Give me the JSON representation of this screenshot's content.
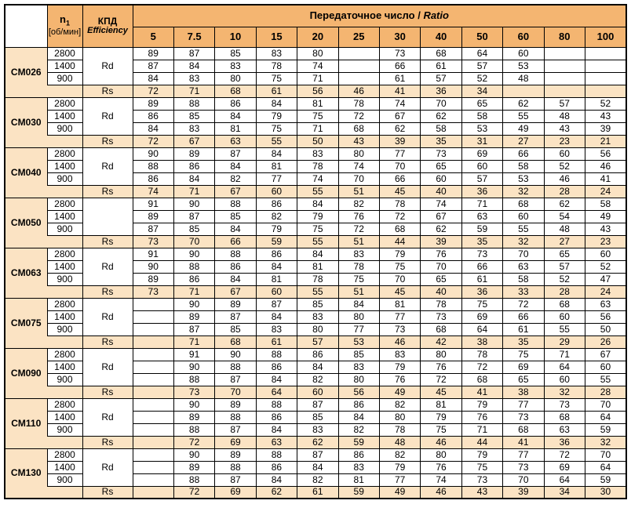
{
  "title": "Gearbox efficiency table",
  "colors": {
    "header_orange": "#F4B571",
    "row_peach": "#FBE3C3",
    "border": "#000000",
    "text": "#000000"
  },
  "header": {
    "n1_label": "n",
    "n1_sub": "1",
    "n1_unit": "[об/мин]",
    "efficiency_ru": "КПД",
    "efficiency_en": "Efficiency",
    "ratio_ru": "Передаточное число /",
    "ratio_en": "Ratio",
    "ratio_columns": [
      "5",
      "7.5",
      "10",
      "15",
      "20",
      "25",
      "30",
      "40",
      "50",
      "60",
      "80",
      "100"
    ]
  },
  "models": [
    {
      "name": "CM026",
      "rd_label": "Rd",
      "rs_label": "Rs",
      "rd_rows": [
        {
          "speed": "2800",
          "values": [
            "89",
            "87",
            "85",
            "83",
            "80",
            "",
            "73",
            "68",
            "64",
            "60",
            "",
            ""
          ]
        },
        {
          "speed": "1400",
          "values": [
            "87",
            "84",
            "83",
            "78",
            "74",
            "",
            "66",
            "61",
            "57",
            "53",
            "",
            ""
          ]
        },
        {
          "speed": "900",
          "values": [
            "84",
            "83",
            "80",
            "75",
            "71",
            "",
            "61",
            "57",
            "52",
            "48",
            "",
            ""
          ]
        }
      ],
      "rs_values": [
        "72",
        "71",
        "68",
        "61",
        "56",
        "46",
        "41",
        "36",
        "34",
        "",
        "",
        ""
      ]
    },
    {
      "name": "CM030",
      "rd_label": "Rd",
      "rs_label": "Rs",
      "rd_rows": [
        {
          "speed": "2800",
          "values": [
            "89",
            "88",
            "86",
            "84",
            "81",
            "78",
            "74",
            "70",
            "65",
            "62",
            "57",
            "52"
          ]
        },
        {
          "speed": "1400",
          "values": [
            "86",
            "85",
            "84",
            "79",
            "75",
            "72",
            "67",
            "62",
            "58",
            "55",
            "48",
            "43"
          ]
        },
        {
          "speed": "900",
          "values": [
            "84",
            "83",
            "81",
            "75",
            "71",
            "68",
            "62",
            "58",
            "53",
            "49",
            "43",
            "39"
          ]
        }
      ],
      "rs_values": [
        "72",
        "67",
        "63",
        "55",
        "50",
        "43",
        "39",
        "35",
        "31",
        "27",
        "23",
        "21"
      ]
    },
    {
      "name": "CM040",
      "rd_label": "Rd",
      "rs_label": "Rs",
      "rd_rows": [
        {
          "speed": "2800",
          "values": [
            "90",
            "89",
            "87",
            "84",
            "83",
            "80",
            "77",
            "73",
            "69",
            "66",
            "60",
            "56"
          ]
        },
        {
          "speed": "1400",
          "values": [
            "88",
            "86",
            "84",
            "81",
            "78",
            "74",
            "70",
            "65",
            "60",
            "58",
            "52",
            "46"
          ]
        },
        {
          "speed": "900",
          "values": [
            "86",
            "84",
            "82",
            "77",
            "74",
            "70",
            "66",
            "60",
            "57",
            "53",
            "46",
            "41"
          ]
        }
      ],
      "rs_values": [
        "74",
        "71",
        "67",
        "60",
        "55",
        "51",
        "45",
        "40",
        "36",
        "32",
        "28",
        "24"
      ]
    },
    {
      "name": "CM050",
      "rd_label": "",
      "rs_label": "Rs",
      "rd_rows": [
        {
          "speed": "2800",
          "values": [
            "91",
            "90",
            "88",
            "86",
            "84",
            "82",
            "78",
            "74",
            "71",
            "68",
            "62",
            "58"
          ]
        },
        {
          "speed": "1400",
          "values": [
            "89",
            "87",
            "85",
            "82",
            "79",
            "76",
            "72",
            "67",
            "63",
            "60",
            "54",
            "49"
          ]
        },
        {
          "speed": "900",
          "values": [
            "87",
            "85",
            "84",
            "79",
            "75",
            "72",
            "68",
            "62",
            "59",
            "55",
            "48",
            "43"
          ]
        }
      ],
      "rs_values": [
        "73",
        "70",
        "66",
        "59",
        "55",
        "51",
        "44",
        "39",
        "35",
        "32",
        "27",
        "23"
      ]
    },
    {
      "name": "CM063",
      "rd_label": "Rd",
      "rs_label": "Rs",
      "rd_rows": [
        {
          "speed": "2800",
          "values": [
            "91",
            "90",
            "88",
            "86",
            "84",
            "83",
            "79",
            "76",
            "73",
            "70",
            "65",
            "60"
          ]
        },
        {
          "speed": "1400",
          "values": [
            "90",
            "88",
            "86",
            "84",
            "81",
            "78",
            "75",
            "70",
            "66",
            "63",
            "57",
            "52"
          ]
        },
        {
          "speed": "900",
          "values": [
            "89",
            "86",
            "84",
            "81",
            "78",
            "75",
            "70",
            "65",
            "61",
            "58",
            "52",
            "47"
          ]
        }
      ],
      "rs_values": [
        "73",
        "71",
        "67",
        "60",
        "55",
        "51",
        "45",
        "40",
        "36",
        "33",
        "28",
        "24"
      ]
    },
    {
      "name": "CM075",
      "rd_label": "Rd",
      "rs_label": "Rs",
      "rd_rows": [
        {
          "speed": "2800",
          "values": [
            "",
            "90",
            "89",
            "87",
            "85",
            "84",
            "81",
            "78",
            "75",
            "72",
            "68",
            "63"
          ]
        },
        {
          "speed": "1400",
          "values": [
            "",
            "89",
            "87",
            "84",
            "83",
            "80",
            "77",
            "73",
            "69",
            "66",
            "60",
            "56"
          ]
        },
        {
          "speed": "900",
          "values": [
            "",
            "87",
            "85",
            "83",
            "80",
            "77",
            "73",
            "68",
            "64",
            "61",
            "55",
            "50"
          ]
        }
      ],
      "rs_values": [
        "",
        "71",
        "68",
        "61",
        "57",
        "53",
        "46",
        "42",
        "38",
        "35",
        "29",
        "26"
      ]
    },
    {
      "name": "CM090",
      "rd_label": "Rd",
      "rs_label": "Rs",
      "rd_rows": [
        {
          "speed": "2800",
          "values": [
            "",
            "91",
            "90",
            "88",
            "86",
            "85",
            "83",
            "80",
            "78",
            "75",
            "71",
            "67"
          ]
        },
        {
          "speed": "1400",
          "values": [
            "",
            "90",
            "88",
            "86",
            "84",
            "83",
            "79",
            "76",
            "72",
            "69",
            "64",
            "60"
          ]
        },
        {
          "speed": "900",
          "values": [
            "",
            "88",
            "87",
            "84",
            "82",
            "80",
            "76",
            "72",
            "68",
            "65",
            "60",
            "55"
          ]
        }
      ],
      "rs_values": [
        "",
        "73",
        "70",
        "64",
        "60",
        "56",
        "49",
        "45",
        "41",
        "38",
        "32",
        "28"
      ]
    },
    {
      "name": "CM110",
      "rd_label": "Rd",
      "rs_label": "Rs",
      "rd_rows": [
        {
          "speed": "2800",
          "values": [
            "",
            "90",
            "89",
            "88",
            "87",
            "86",
            "82",
            "81",
            "79",
            "77",
            "73",
            "70"
          ]
        },
        {
          "speed": "1400",
          "values": [
            "",
            "89",
            "88",
            "86",
            "85",
            "84",
            "80",
            "79",
            "76",
            "73",
            "68",
            "64"
          ]
        },
        {
          "speed": "900",
          "values": [
            "",
            "88",
            "87",
            "84",
            "83",
            "82",
            "78",
            "75",
            "71",
            "68",
            "63",
            "59"
          ]
        }
      ],
      "rs_values": [
        "",
        "72",
        "69",
        "63",
        "62",
        "59",
        "48",
        "46",
        "44",
        "41",
        "36",
        "32"
      ]
    },
    {
      "name": "CM130",
      "rd_label": "Rd",
      "rs_label": "Rs",
      "rd_rows": [
        {
          "speed": "2800",
          "values": [
            "",
            "90",
            "89",
            "88",
            "87",
            "86",
            "82",
            "80",
            "79",
            "77",
            "72",
            "70"
          ]
        },
        {
          "speed": "1400",
          "values": [
            "",
            "89",
            "88",
            "86",
            "84",
            "83",
            "79",
            "76",
            "75",
            "73",
            "69",
            "64"
          ]
        },
        {
          "speed": "900",
          "values": [
            "",
            "88",
            "87",
            "84",
            "82",
            "81",
            "77",
            "74",
            "73",
            "70",
            "64",
            "59"
          ]
        }
      ],
      "rs_values": [
        "",
        "72",
        "69",
        "62",
        "61",
        "59",
        "49",
        "46",
        "43",
        "39",
        "34",
        "30"
      ]
    }
  ]
}
